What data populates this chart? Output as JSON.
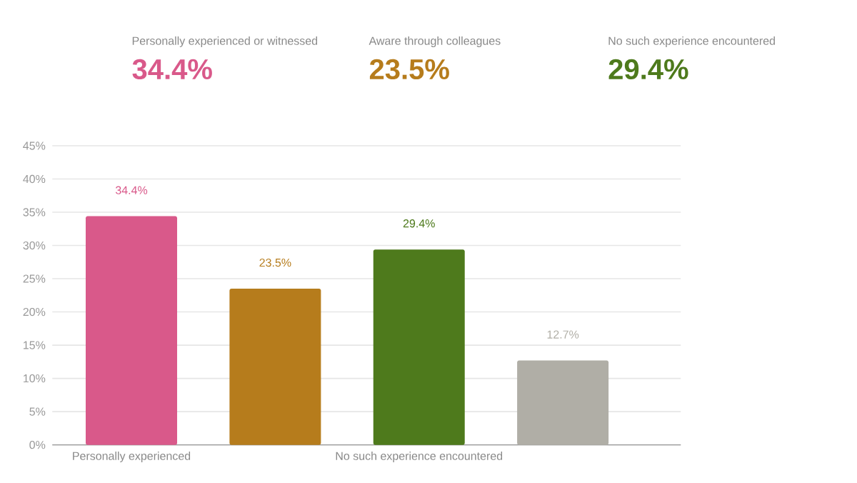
{
  "chart_data": {
    "type": "bar",
    "categories": [
      "Personally experienced",
      null,
      "No such experience encountered",
      null
    ],
    "values": [
      34.4,
      23.5,
      29.4,
      12.7
    ],
    "colors": [
      "#d9598a",
      "#b67c1c",
      "#4e7a1c",
      "#b0aea6"
    ],
    "value_labels": [
      "34.4%",
      "23.5%",
      "29.4%",
      "12.7%"
    ],
    "annotations": [
      "Personally experienced or witnessed",
      "34.4%",
      "Aware through colleagues",
      "23.5%",
      "No such experience encountered",
      "29.4%"
    ],
    "ylim": [
      0,
      45
    ],
    "yticks": [
      {
        "value": 0,
        "label": "0%"
      },
      {
        "value": 5,
        "label": "5%"
      },
      {
        "value": 10,
        "label": "10%"
      },
      {
        "value": 15,
        "label": "15%"
      },
      {
        "value": 20,
        "label": "20%"
      },
      {
        "value": 25,
        "label": "25%"
      },
      {
        "value": 30,
        "label": "30%"
      },
      {
        "value": 35,
        "label": "35%"
      },
      {
        "value": 40,
        "label": "40%"
      },
      {
        "value": 45,
        "label": "45%"
      }
    ],
    "grid": "y"
  }
}
